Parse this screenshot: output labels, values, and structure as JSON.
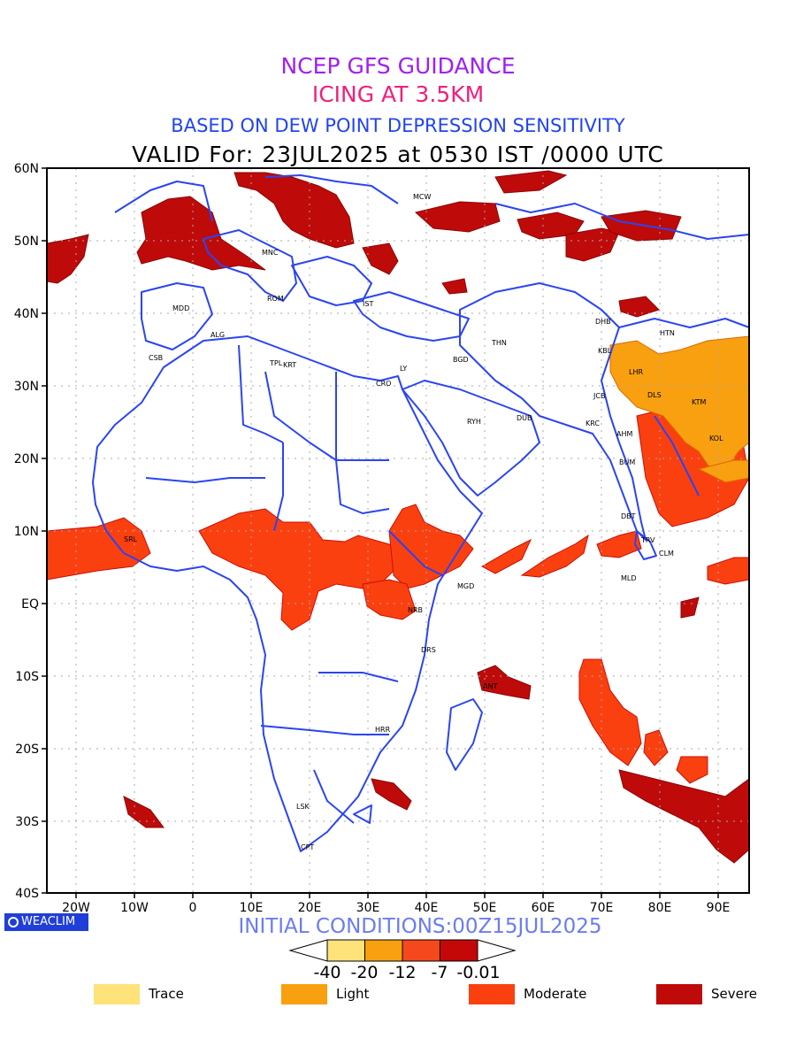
{
  "titles": {
    "line1": "NCEP GFS GUIDANCE",
    "line2": "ICING AT 3.5KM",
    "line3": "BASED ON DEW POINT DEPRESSION SENSITIVITY",
    "line4": "VALID For: 23JUL2025 at 0530 IST /0000 UTC"
  },
  "initial_conditions": "INITIAL CONDITIONS:00Z15JUL2025",
  "brand": "WEACLIM",
  "axes": {
    "lat_labels": [
      "60N",
      "50N",
      "40N",
      "30N",
      "20N",
      "10N",
      "EQ",
      "10S",
      "20S",
      "30S",
      "40S"
    ],
    "lon_labels": [
      "20W",
      "10W",
      "0",
      "10E",
      "20E",
      "30E",
      "40E",
      "50E",
      "60E",
      "70E",
      "80E",
      "90E"
    ]
  },
  "stations": [
    "MCW",
    "MNC",
    "MDD",
    "ROM",
    "IST",
    "ALG",
    "CSB",
    "TPL",
    "KRT",
    "CRO",
    "LY",
    "BGD",
    "THN",
    "DHB",
    "HTN",
    "KBL",
    "LHR",
    "DLS",
    "KTM",
    "JCB",
    "RYH",
    "DUB",
    "KRC",
    "AHM",
    "KOL",
    "BUM",
    "DBT",
    "TRV",
    "CLM",
    "MLD",
    "SRL",
    "MGD",
    "NRB",
    "DRS",
    "HRR",
    "LSK",
    "CPT",
    "ANT"
  ],
  "colorbar": {
    "tick_labels": [
      "-40",
      "-20",
      "-12",
      "-7",
      "-0.01"
    ],
    "colors": [
      "#fde37a",
      "#f8a010",
      "#f5481c",
      "#c40808"
    ]
  },
  "legend": [
    {
      "label": "Trace",
      "color": "#fde37a"
    },
    {
      "label": "Light",
      "color": "#f8a010"
    },
    {
      "label": "Moderate",
      "color": "#fb4010"
    },
    {
      "label": "Severe",
      "color": "#bf0a0a"
    }
  ],
  "colors": {
    "border": "#2b45f0",
    "grid": "#aaaaaa"
  }
}
